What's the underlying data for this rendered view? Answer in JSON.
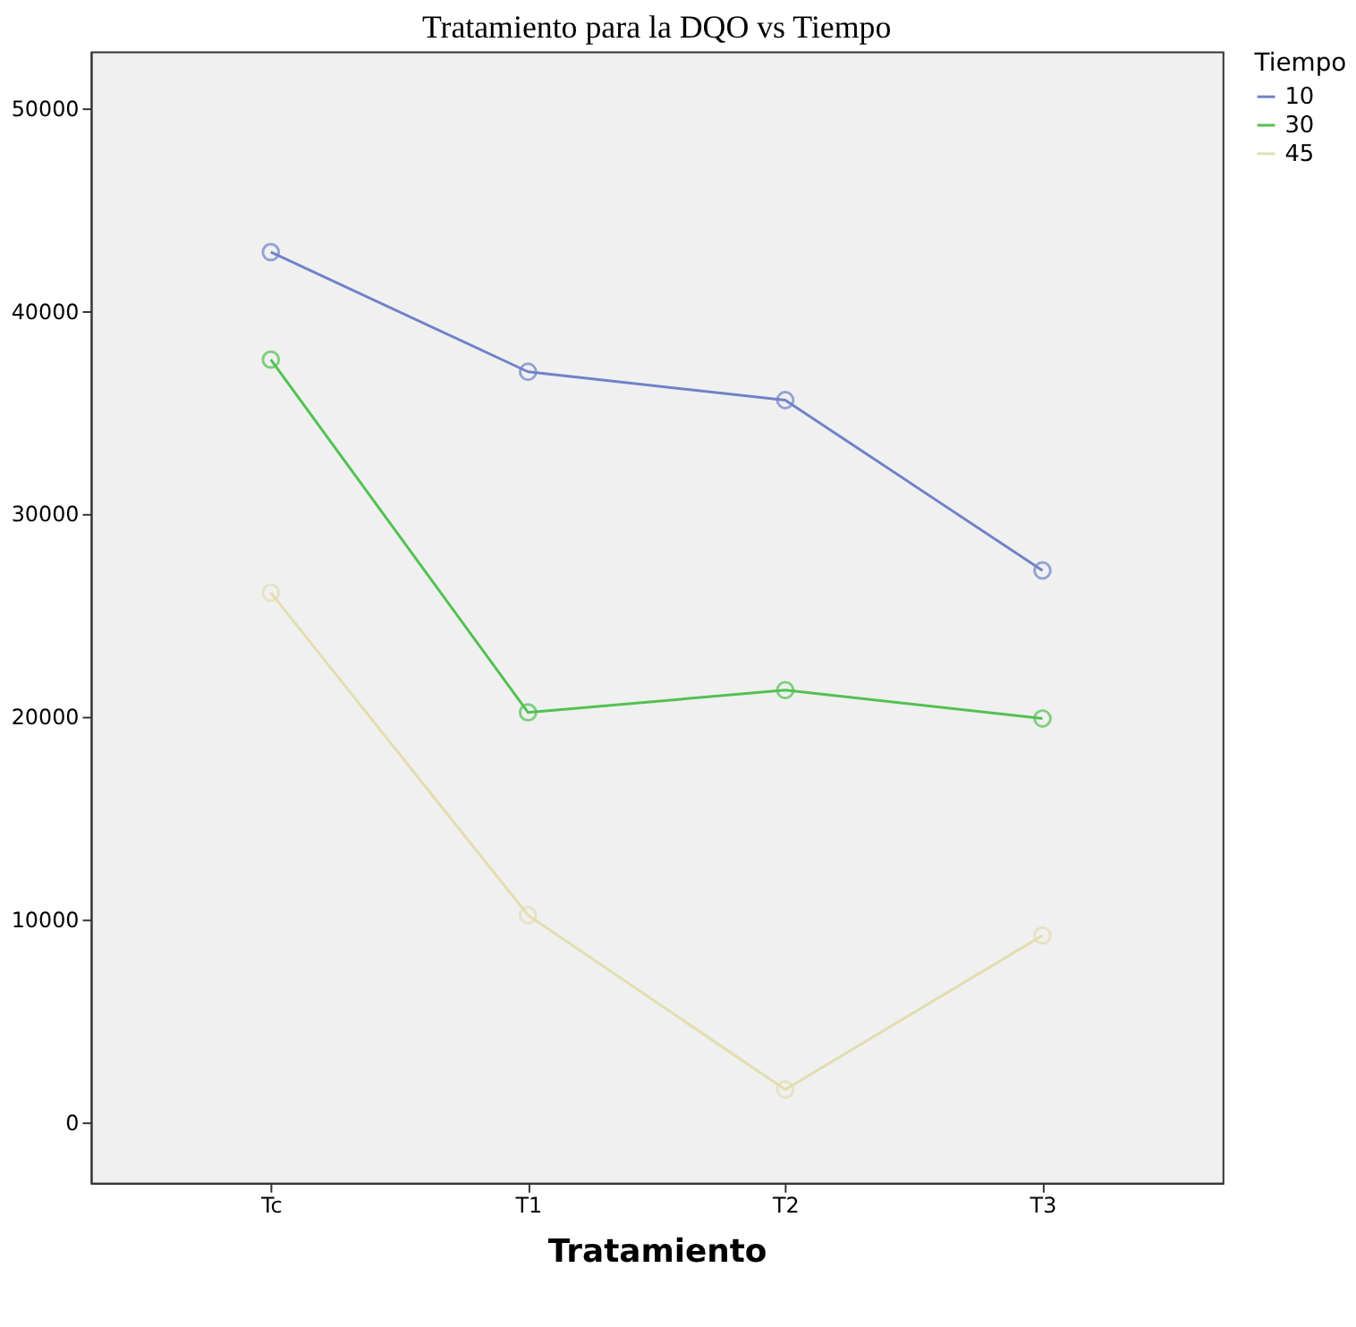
{
  "chart_data": {
    "type": "line",
    "title": "Tratamiento para la DQO vs Tiempo",
    "xlabel": "Tratamiento",
    "legend_title": "Tiempo",
    "categories": [
      "Tc",
      "T1",
      "T2",
      "T3"
    ],
    "series": [
      {
        "name": "10",
        "color": "#7082c8",
        "values": [
          42900,
          37000,
          35600,
          27200
        ]
      },
      {
        "name": "30",
        "color": "#52c152",
        "values": [
          37600,
          20200,
          21300,
          19900
        ]
      },
      {
        "name": "45",
        "color": "#e3ddb0",
        "values": [
          26100,
          10200,
          1600,
          9200
        ]
      }
    ],
    "ylim": [
      -3000,
      52800
    ],
    "yticks": [
      0,
      10000,
      20000,
      30000,
      40000,
      50000
    ],
    "grid": false,
    "legend": "top right",
    "marker": "circle",
    "line_style": "solid"
  }
}
